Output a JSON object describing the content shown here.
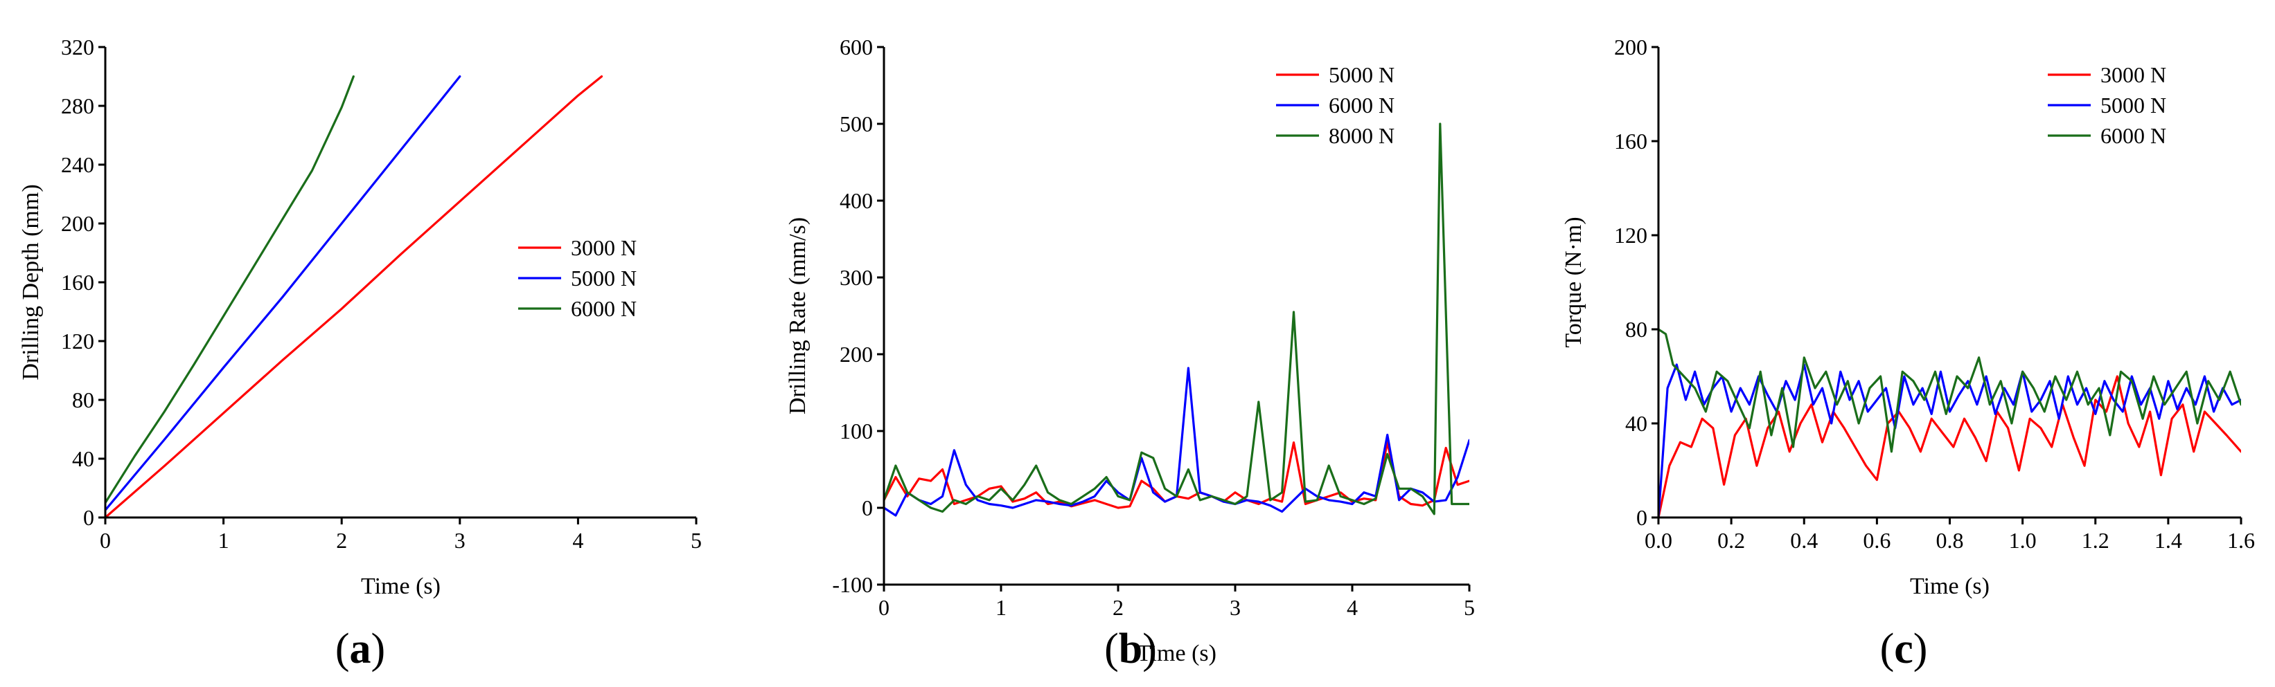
{
  "chart_data": [
    {
      "type": "line",
      "panel_label": "a",
      "xlabel": "Time (s)",
      "ylabel": "Drilling Depth (mm)",
      "xlim": [
        0,
        5
      ],
      "ylim": [
        0,
        320
      ],
      "x_ticks": [
        0,
        1,
        2,
        3,
        4,
        5
      ],
      "y_ticks": [
        0,
        40,
        80,
        120,
        160,
        200,
        240,
        280,
        320
      ],
      "legend_position": "right-middle",
      "series": [
        {
          "name": "3000 N",
          "color": "#ff0000",
          "x": [
            0,
            0.5,
            1.0,
            1.5,
            2.0,
            2.5,
            3.0,
            3.5,
            4.0,
            4.2
          ],
          "y": [
            0,
            35,
            71,
            107,
            142,
            179,
            215,
            251,
            287,
            300
          ]
        },
        {
          "name": "5000 N",
          "color": "#0000ff",
          "x": [
            0,
            0.5,
            1.0,
            1.5,
            2.0,
            2.5,
            3.0
          ],
          "y": [
            5,
            53,
            102,
            150,
            200,
            250,
            300
          ]
        },
        {
          "name": "6000 N",
          "color": "#1a6e1a",
          "x": [
            0,
            0.25,
            0.5,
            0.75,
            1.0,
            1.25,
            1.5,
            1.75,
            2.0,
            2.1
          ],
          "y": [
            10,
            42,
            72,
            104,
            137,
            170,
            203,
            236,
            279,
            300
          ]
        }
      ]
    },
    {
      "type": "line",
      "panel_label": "b",
      "xlabel": "Time (s)",
      "ylabel": "Drilling Rate (mm/s)",
      "xlim": [
        0,
        5
      ],
      "ylim": [
        -100,
        600
      ],
      "x_ticks": [
        0,
        1,
        2,
        3,
        4,
        5
      ],
      "y_ticks": [
        -100,
        0,
        100,
        200,
        300,
        400,
        500,
        600
      ],
      "legend_position": "top-right",
      "series": [
        {
          "name": "5000 N",
          "color": "#ff0000",
          "x": [
            0,
            0.1,
            0.2,
            0.3,
            0.4,
            0.5,
            0.6,
            0.7,
            0.8,
            0.9,
            1.0,
            1.1,
            1.2,
            1.3,
            1.4,
            1.5,
            1.6,
            1.7,
            1.8,
            1.9,
            2.0,
            2.1,
            2.2,
            2.3,
            2.4,
            2.5,
            2.6,
            2.7,
            2.8,
            2.9,
            3.0,
            3.1,
            3.2,
            3.3,
            3.4,
            3.5,
            3.6,
            3.7,
            3.8,
            3.9,
            4.0,
            4.1,
            4.2,
            4.3,
            4.4,
            4.5,
            4.6,
            4.7,
            4.8,
            4.9,
            5.0
          ],
          "y": [
            10,
            40,
            15,
            38,
            35,
            50,
            5,
            10,
            15,
            25,
            28,
            8,
            12,
            20,
            5,
            8,
            2,
            6,
            10,
            5,
            0,
            2,
            35,
            25,
            8,
            15,
            12,
            20,
            15,
            8,
            20,
            10,
            5,
            12,
            8,
            85,
            5,
            10,
            15,
            20,
            8,
            12,
            10,
            85,
            15,
            5,
            3,
            10,
            78,
            30,
            35
          ]
        },
        {
          "name": "6000 N",
          "color": "#0000ff",
          "x": [
            0,
            0.1,
            0.2,
            0.3,
            0.4,
            0.5,
            0.6,
            0.7,
            0.8,
            0.9,
            1.0,
            1.1,
            1.2,
            1.3,
            1.4,
            1.5,
            1.6,
            1.7,
            1.8,
            1.9,
            2.0,
            2.1,
            2.2,
            2.3,
            2.4,
            2.5,
            2.6,
            2.7,
            2.8,
            2.9,
            3.0,
            3.1,
            3.2,
            3.3,
            3.4,
            3.5,
            3.6,
            3.7,
            3.8,
            3.9,
            4.0,
            4.1,
            4.2,
            4.3,
            4.4,
            4.5,
            4.6,
            4.7,
            4.8,
            4.9,
            5.0
          ],
          "y": [
            0,
            -10,
            20,
            10,
            5,
            15,
            75,
            30,
            10,
            5,
            3,
            0,
            5,
            10,
            8,
            5,
            3,
            8,
            15,
            35,
            20,
            10,
            65,
            20,
            8,
            15,
            182,
            20,
            15,
            8,
            5,
            10,
            8,
            3,
            -5,
            10,
            25,
            15,
            10,
            8,
            5,
            20,
            15,
            95,
            10,
            25,
            20,
            8,
            10,
            40,
            88
          ]
        },
        {
          "name": "8000 N",
          "color": "#1a6e1a",
          "x": [
            0,
            0.1,
            0.2,
            0.3,
            0.4,
            0.5,
            0.6,
            0.7,
            0.8,
            0.9,
            1.0,
            1.1,
            1.2,
            1.3,
            1.4,
            1.5,
            1.6,
            1.7,
            1.8,
            1.9,
            2.0,
            2.1,
            2.2,
            2.3,
            2.4,
            2.5,
            2.6,
            2.7,
            2.8,
            2.9,
            3.0,
            3.1,
            3.2,
            3.3,
            3.4,
            3.5,
            3.6,
            3.7,
            3.8,
            3.9,
            4.0,
            4.1,
            4.2,
            4.3,
            4.4,
            4.5,
            4.6,
            4.7,
            4.75,
            4.85,
            4.9,
            5.0
          ],
          "y": [
            10,
            55,
            20,
            10,
            0,
            -5,
            10,
            5,
            15,
            10,
            25,
            10,
            30,
            55,
            20,
            10,
            5,
            15,
            25,
            40,
            15,
            10,
            72,
            65,
            25,
            15,
            50,
            10,
            15,
            10,
            5,
            15,
            138,
            10,
            20,
            255,
            8,
            10,
            55,
            15,
            10,
            5,
            12,
            70,
            25,
            25,
            15,
            -8,
            500,
            5,
            5,
            5
          ]
        }
      ]
    },
    {
      "type": "line",
      "panel_label": "c",
      "xlabel": "Time (s)",
      "ylabel": "Torque (N·m)",
      "xlim": [
        0,
        1.6
      ],
      "ylim": [
        0,
        200
      ],
      "x_ticks": [
        0.0,
        0.2,
        0.4,
        0.6,
        0.8,
        1.0,
        1.2,
        1.4,
        1.6
      ],
      "x_tick_labels": [
        "0.0",
        "0.2",
        "0.4",
        "0.6",
        "0.8",
        "1.0",
        "1.2",
        "1.4",
        "1.6"
      ],
      "y_ticks": [
        0,
        40,
        80,
        120,
        160,
        200
      ],
      "legend_position": "top-right",
      "series": [
        {
          "name": "3000 N",
          "color": "#ff0000",
          "x": [
            0,
            0.03,
            0.06,
            0.09,
            0.12,
            0.15,
            0.18,
            0.21,
            0.24,
            0.27,
            0.3,
            0.33,
            0.36,
            0.39,
            0.42,
            0.45,
            0.48,
            0.51,
            0.54,
            0.57,
            0.6,
            0.63,
            0.66,
            0.69,
            0.72,
            0.75,
            0.78,
            0.81,
            0.84,
            0.87,
            0.9,
            0.93,
            0.96,
            0.99,
            1.02,
            1.05,
            1.08,
            1.11,
            1.14,
            1.17,
            1.2,
            1.23,
            1.26,
            1.29,
            1.32,
            1.35,
            1.38,
            1.41,
            1.44,
            1.47,
            1.5,
            1.53,
            1.56,
            1.6
          ],
          "y": [
            0,
            22,
            32,
            30,
            42,
            38,
            14,
            35,
            42,
            22,
            38,
            45,
            28,
            40,
            48,
            32,
            45,
            38,
            30,
            22,
            16,
            40,
            45,
            38,
            28,
            42,
            36,
            30,
            42,
            34,
            24,
            45,
            38,
            20,
            42,
            38,
            30,
            48,
            34,
            22,
            50,
            45,
            60,
            40,
            30,
            45,
            18,
            42,
            48,
            28,
            45,
            40,
            35,
            28
          ]
        },
        {
          "name": "5000 N",
          "color": "#0000ff",
          "x": [
            0,
            0.025,
            0.05,
            0.075,
            0.1,
            0.125,
            0.15,
            0.175,
            0.2,
            0.225,
            0.25,
            0.275,
            0.3,
            0.325,
            0.35,
            0.375,
            0.4,
            0.425,
            0.45,
            0.475,
            0.5,
            0.525,
            0.55,
            0.575,
            0.6,
            0.625,
            0.65,
            0.675,
            0.7,
            0.725,
            0.75,
            0.775,
            0.8,
            0.825,
            0.85,
            0.875,
            0.9,
            0.925,
            0.95,
            0.975,
            1.0,
            1.025,
            1.05,
            1.075,
            1.1,
            1.125,
            1.15,
            1.175,
            1.2,
            1.225,
            1.25,
            1.275,
            1.3,
            1.325,
            1.35,
            1.375,
            1.4,
            1.425,
            1.45,
            1.475,
            1.5,
            1.525,
            1.55,
            1.575,
            1.6
          ],
          "y": [
            0,
            55,
            65,
            50,
            62,
            48,
            55,
            60,
            45,
            55,
            48,
            60,
            52,
            45,
            58,
            50,
            65,
            48,
            55,
            40,
            62,
            50,
            58,
            45,
            50,
            55,
            38,
            60,
            48,
            55,
            44,
            62,
            45,
            52,
            58,
            48,
            60,
            44,
            55,
            48,
            62,
            45,
            50,
            58,
            42,
            60,
            48,
            55,
            44,
            58,
            50,
            45,
            60,
            48,
            55,
            42,
            58,
            46,
            55,
            48,
            60,
            45,
            55,
            48,
            50
          ]
        },
        {
          "name": "6000 N",
          "color": "#1a6e1a",
          "x": [
            0,
            0.02,
            0.04,
            0.07,
            0.1,
            0.13,
            0.16,
            0.19,
            0.22,
            0.25,
            0.28,
            0.31,
            0.34,
            0.37,
            0.4,
            0.43,
            0.46,
            0.49,
            0.52,
            0.55,
            0.58,
            0.61,
            0.64,
            0.67,
            0.7,
            0.73,
            0.76,
            0.79,
            0.82,
            0.85,
            0.88,
            0.91,
            0.94,
            0.97,
            1.0,
            1.03,
            1.06,
            1.09,
            1.12,
            1.15,
            1.18,
            1.21,
            1.24,
            1.27,
            1.3,
            1.33,
            1.36,
            1.39,
            1.42,
            1.45,
            1.48,
            1.51,
            1.54,
            1.57,
            1.6
          ],
          "y": [
            80,
            78,
            65,
            60,
            55,
            45,
            62,
            58,
            48,
            38,
            62,
            35,
            55,
            30,
            68,
            55,
            62,
            48,
            58,
            40,
            55,
            60,
            28,
            62,
            58,
            50,
            62,
            44,
            60,
            55,
            68,
            48,
            58,
            40,
            62,
            55,
            45,
            60,
            50,
            62,
            48,
            55,
            35,
            62,
            58,
            42,
            60,
            48,
            55,
            62,
            40,
            58,
            50,
            62,
            48
          ]
        }
      ]
    }
  ]
}
